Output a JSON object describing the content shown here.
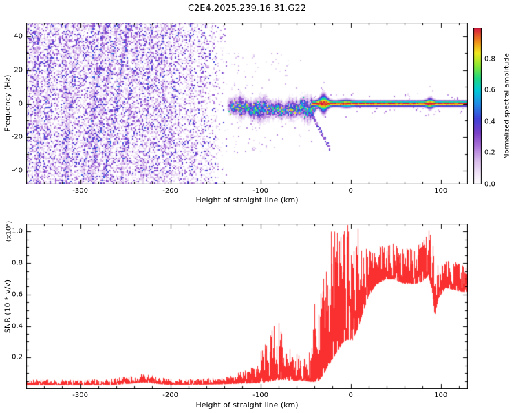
{
  "title": "C2E4.2025.239.16.31.G22",
  "colormap": [
    [
      0.0,
      "#ffffff"
    ],
    [
      0.06,
      "#f3eaf9"
    ],
    [
      0.15,
      "#d9bdec"
    ],
    [
      0.25,
      "#a96fd8"
    ],
    [
      0.33,
      "#7a3fc8"
    ],
    [
      0.42,
      "#4040d8"
    ],
    [
      0.52,
      "#2090e8"
    ],
    [
      0.6,
      "#00c8d8"
    ],
    [
      0.68,
      "#20d880"
    ],
    [
      0.76,
      "#8ce830"
    ],
    [
      0.84,
      "#f0e820"
    ],
    [
      0.91,
      "#f09018"
    ],
    [
      1.0,
      "#d81840"
    ]
  ],
  "chart_data": [
    {
      "type": "heatmap",
      "name": "doppler-spectrogram",
      "xlabel": "Height of straight line (km)",
      "ylabel": "Frequency (Hz)",
      "xlim": [
        -360,
        130
      ],
      "ylim": [
        -48,
        48
      ],
      "xticks": [
        -300,
        -200,
        -100,
        0,
        100
      ],
      "yticks": [
        -40,
        -20,
        0,
        20,
        40
      ],
      "colorbar": {
        "label": "Normalized spectral amplitude",
        "ticks": [
          0.0,
          0.2,
          0.4,
          0.6,
          0.8
        ],
        "vmin": 0,
        "vmax": 1
      },
      "noise": {
        "edge": -133,
        "fade1": -162,
        "fade2": -212,
        "dense": 0.58,
        "mid": 0.33,
        "max_amp": 0.38,
        "streaks": [
          [
            -348,
            0,
            0.2
          ],
          [
            -331,
            0.12,
            0.16
          ],
          [
            -316,
            0,
            0.22
          ],
          [
            -301,
            0.18,
            0.22
          ],
          [
            -286,
            0,
            0.15
          ],
          [
            -271,
            0.28,
            0.26
          ],
          [
            -258,
            0.32,
            0.3
          ],
          [
            -246,
            0.3,
            0.3
          ],
          [
            -234,
            0.22,
            0.24
          ],
          [
            -221,
            0.1,
            0.2
          ],
          [
            -207,
            0,
            0.16
          ],
          [
            -192,
            0.12,
            0.14
          ],
          [
            -177,
            0,
            0.12
          ],
          [
            -162,
            0,
            0.1
          ],
          [
            -150,
            0,
            0.1
          ]
        ]
      },
      "spread_echo": {
        "x_start": -138,
        "x_end": -36,
        "center": -2,
        "width_base": 7,
        "amp": 0.52
      },
      "tail": {
        "km_start": -46,
        "km_end": -23,
        "f_start": -3,
        "f_end": -27
      },
      "narrow_line": {
        "x_start": -42,
        "freq": 0,
        "sigma": 1.5,
        "blobs": [
          {
            "km": -30,
            "extra": 3.2,
            "sigma": 5
          },
          {
            "km": 88,
            "extra": 1.2,
            "sigma": 4
          },
          {
            "km": -5,
            "extra": 0.5,
            "sigma": 6
          }
        ]
      }
    },
    {
      "type": "line",
      "name": "snr-profile",
      "xlabel": "Height of straight line (km)",
      "ylabel": "SNR (10 * v/v)",
      "scale_label": "(x10⁴)",
      "xlim": [
        -360,
        130
      ],
      "ylim": [
        0,
        1.05
      ],
      "xticks": [
        -300,
        -200,
        -100,
        0,
        100
      ],
      "yticks": [
        0.2,
        0.4,
        0.6,
        0.8,
        1.0
      ],
      "series": [
        {
          "name": "SNR",
          "color": "#fa3030",
          "envelope": [
            [
              -360,
              0.028,
              0.016
            ],
            [
              -310,
              0.028,
              0.016
            ],
            [
              -265,
              0.03,
              0.018
            ],
            [
              -242,
              0.042,
              0.024
            ],
            [
              -230,
              0.05,
              0.028
            ],
            [
              -218,
              0.04,
              0.022
            ],
            [
              -200,
              0.03,
              0.017
            ],
            [
              -170,
              0.032,
              0.018
            ],
            [
              -145,
              0.035,
              0.02
            ],
            [
              -128,
              0.042,
              0.03
            ],
            [
              -112,
              0.05,
              0.045
            ],
            [
              -102,
              0.062,
              0.075
            ],
            [
              -92,
              0.085,
              0.12
            ],
            [
              -83,
              0.12,
              0.185
            ],
            [
              -76,
              0.11,
              0.15
            ],
            [
              -66,
              0.085,
              0.095
            ],
            [
              -56,
              0.075,
              0.07
            ],
            [
              -48,
              0.07,
              0.065
            ],
            [
              -42,
              0.095,
              0.15
            ],
            [
              -35,
              0.13,
              0.22
            ],
            [
              -28,
              0.22,
              0.3
            ],
            [
              -22,
              0.3,
              0.36
            ],
            [
              -16,
              0.36,
              0.38
            ],
            [
              -10,
              0.4,
              0.33
            ],
            [
              -4,
              0.43,
              0.34
            ],
            [
              2,
              0.4,
              0.26
            ],
            [
              8,
              0.47,
              0.24
            ],
            [
              14,
              0.56,
              0.18
            ],
            [
              20,
              0.64,
              0.13
            ],
            [
              28,
              0.7,
              0.11
            ],
            [
              38,
              0.73,
              0.1
            ],
            [
              48,
              0.73,
              0.1
            ],
            [
              58,
              0.705,
              0.1
            ],
            [
              68,
              0.7,
              0.1
            ],
            [
              78,
              0.715,
              0.11
            ],
            [
              86,
              0.76,
              0.13
            ],
            [
              90,
              0.68,
              0.16
            ],
            [
              93,
              0.52,
              0.15
            ],
            [
              97,
              0.61,
              0.1
            ],
            [
              105,
              0.67,
              0.085
            ],
            [
              115,
              0.655,
              0.08
            ],
            [
              124,
              0.64,
              0.075
            ],
            [
              130,
              0.645,
              0.075
            ]
          ],
          "spikes": [
            [
              -230,
              0.09
            ],
            [
              -100,
              0.24
            ],
            [
              -85,
              0.4
            ],
            [
              -80,
              0.42
            ],
            [
              -77,
              0.34
            ],
            [
              -60,
              0.22
            ],
            [
              -40,
              0.54
            ],
            [
              -30,
              0.7
            ],
            [
              -18,
              1.0
            ],
            [
              -12,
              0.8
            ],
            [
              -3,
              1.0
            ],
            [
              8,
              1.02
            ],
            [
              12,
              0.88
            ],
            [
              33,
              0.9
            ],
            [
              55,
              0.86
            ],
            [
              88,
              0.98
            ]
          ]
        }
      ]
    }
  ]
}
